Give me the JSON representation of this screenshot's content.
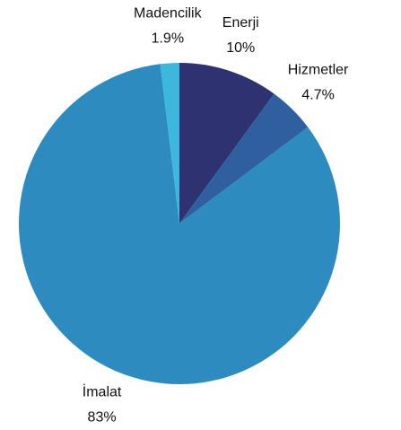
{
  "chart_data": {
    "type": "pie",
    "categories": [
      "Enerji",
      "Hizmetler",
      "İmalat",
      "Madencilik"
    ],
    "values": [
      10,
      4.7,
      83,
      1.9
    ],
    "value_labels": [
      "10%",
      "4.7%",
      "83%",
      "1.9%"
    ],
    "colors": [
      "#2e3270",
      "#2f5f9e",
      "#2e8bc0",
      "#3bb8dc"
    ]
  }
}
